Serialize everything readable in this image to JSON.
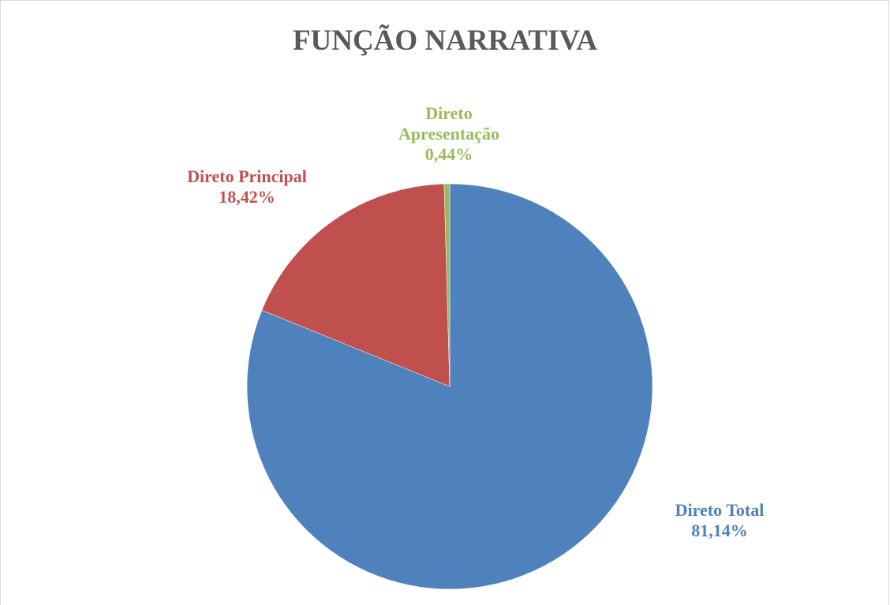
{
  "chart_data": {
    "type": "pie",
    "title": "FUNÇÃO NARRATIVA",
    "categories": [
      "Direto Total",
      "Direto Principal",
      "Direto Apresentação"
    ],
    "values": [
      81.14,
      18.42,
      0.44
    ],
    "value_labels": [
      "81,14%",
      "18,42%",
      "0,44%"
    ],
    "colors": [
      "#4f81bd",
      "#c0504d",
      "#9bbb59"
    ]
  }
}
